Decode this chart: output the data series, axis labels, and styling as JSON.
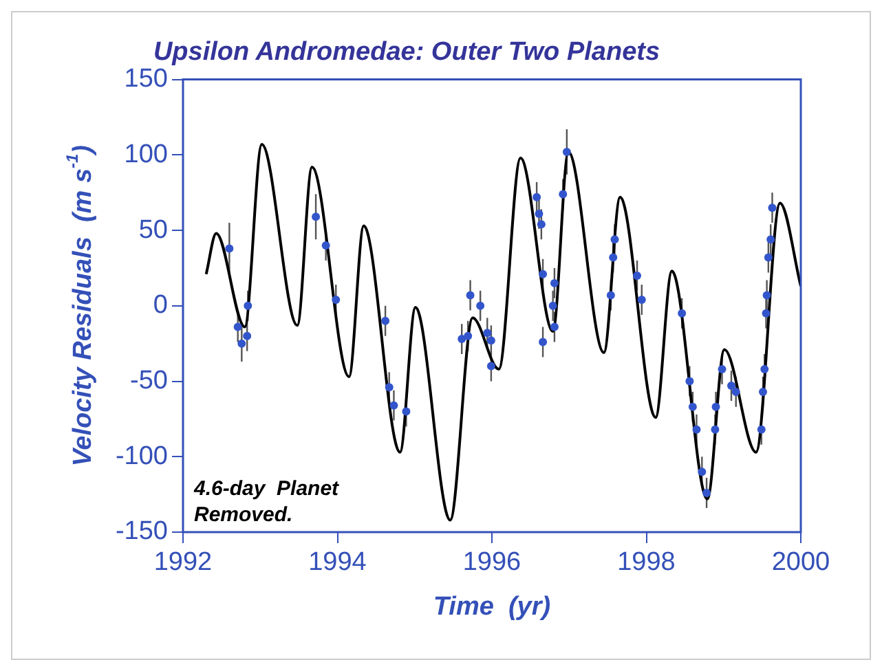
{
  "chart_data": {
    "type": "line",
    "title": "Upsilon Andromedae: Outer Two Planets",
    "xlabel": "Time  (yr)",
    "ylabel": "Velocity Residuals  (m s$^{-1}$)",
    "annotations": [
      "4.6-day  Planet\nRemoved."
    ],
    "xlim": [
      1992,
      2000
    ],
    "xticks": [
      1992,
      1994,
      1996,
      1998,
      2000
    ],
    "ylim": [
      -150,
      150
    ],
    "yticks": [
      -150,
      -100,
      -50,
      0,
      50,
      100,
      150
    ],
    "grid": false,
    "legend": false,
    "series": [
      {
        "color": "#000000",
        "marker": "none",
        "line_style": "solid",
        "x": [
          1992.3,
          1992.43,
          1992.8,
          1993.02,
          1993.48,
          1993.67,
          1994.15,
          1994.34,
          1994.81,
          1995.01,
          1995.46,
          1995.75,
          1996.09,
          1996.37,
          1996.79,
          1996.99,
          1997.45,
          1997.66,
          1998.12,
          1998.33,
          1998.79,
          1999.01,
          1999.42,
          1999.73,
          2000.0
        ],
        "values": [
          21,
          48,
          -14,
          107,
          -13,
          92,
          -47,
          53,
          -97,
          -1,
          -142,
          -8,
          -42,
          98,
          -17,
          102,
          -31,
          72,
          -74,
          23,
          -128,
          -29,
          -97,
          68,
          13
        ]
      },
      {
        "type": "scatter",
        "color": "#3355cc",
        "marker": "circle",
        "x": [
          1992.6,
          1992.71,
          1992.76,
          1992.83,
          1992.84,
          1993.72,
          1993.85,
          1993.98,
          1994.62,
          1994.67,
          1994.73,
          1994.89,
          1995.61,
          1995.69,
          1995.72,
          1995.85,
          1995.94,
          1995.99,
          1995.99,
          1996.58,
          1996.61,
          1996.64,
          1996.66,
          1996.66,
          1996.79,
          1996.81,
          1996.81,
          1996.92,
          1996.97,
          1997.54,
          1997.57,
          1997.59,
          1997.88,
          1997.94,
          1998.46,
          1998.56,
          1998.6,
          1998.65,
          1998.72,
          1998.78,
          1998.89,
          1998.9,
          1998.98,
          1999.1,
          1999.16,
          1999.49,
          1999.51,
          1999.53,
          1999.55,
          1999.56,
          1999.58,
          1999.61,
          1999.63
        ],
        "values": [
          38,
          -14,
          -25,
          -20,
          0,
          59,
          40,
          4,
          -10,
          -54,
          -66,
          -70,
          -22,
          -20,
          7,
          0,
          -18,
          -23,
          -40,
          72,
          61,
          54,
          21,
          -24,
          0,
          15,
          -14,
          74,
          102,
          7,
          32,
          44,
          20,
          4,
          -5,
          -50,
          -67,
          -82,
          -110,
          -124,
          -82,
          -67,
          -42,
          -53,
          -57,
          -82,
          -57,
          -42,
          -5,
          7,
          32,
          44,
          65
        ],
        "errors": [
          17,
          10,
          12,
          10,
          10,
          15,
          10,
          10,
          10,
          10,
          10,
          10,
          10,
          10,
          10,
          10,
          10,
          10,
          10,
          10,
          10,
          10,
          10,
          10,
          10,
          10,
          10,
          10,
          15,
          10,
          10,
          10,
          10,
          10,
          10,
          10,
          10,
          10,
          10,
          10,
          10,
          10,
          10,
          10,
          10,
          10,
          10,
          10,
          10,
          10,
          10,
          10,
          10
        ]
      }
    ]
  }
}
